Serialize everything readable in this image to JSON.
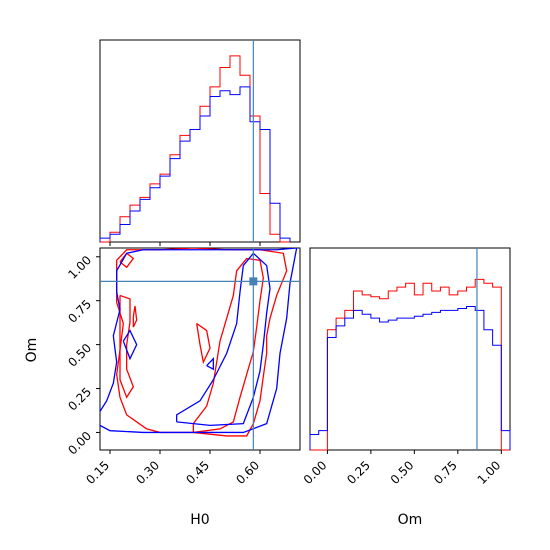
{
  "chart_data": {
    "type": "corner",
    "parameters": [
      "H0",
      "Om"
    ],
    "truths": {
      "H0": 0.58,
      "Om": 0.86
    },
    "truth_color": "#4682b4",
    "series_colors": {
      "red": "#ff0000",
      "blue": "#0000ff"
    },
    "axes": {
      "H0": {
        "label": "H0",
        "range": [
          0.12,
          0.72
        ],
        "ticks": [
          0.15,
          0.3,
          0.45,
          0.6
        ],
        "tick_labels": [
          "0.15",
          "0.30",
          "0.45",
          "0.60"
        ]
      },
      "Om": {
        "label": "Om",
        "range": [
          -0.1,
          1.05
        ],
        "ticks": [
          0.0,
          0.25,
          0.5,
          0.75,
          1.0
        ],
        "tick_labels": [
          "0.00",
          "0.25",
          "0.50",
          "0.75",
          "1.00"
        ]
      }
    },
    "hist_H0": {
      "edges": [
        0.12,
        0.15,
        0.18,
        0.21,
        0.24,
        0.27,
        0.3,
        0.33,
        0.36,
        0.39,
        0.42,
        0.45,
        0.48,
        0.51,
        0.54,
        0.57,
        0.6,
        0.63,
        0.66,
        0.69
      ],
      "red": [
        0,
        0.05,
        0.13,
        0.19,
        0.23,
        0.3,
        0.35,
        0.45,
        0.55,
        0.58,
        0.7,
        0.8,
        0.9,
        0.96,
        0.86,
        0.65,
        0.25,
        0.04,
        0
      ],
      "blue": [
        0.02,
        0.04,
        0.09,
        0.16,
        0.22,
        0.28,
        0.34,
        0.43,
        0.52,
        0.58,
        0.65,
        0.75,
        0.78,
        0.76,
        0.8,
        0.62,
        0.58,
        0.2,
        0.02
      ]
    },
    "hist_Om": {
      "edges": [
        -0.1,
        -0.05,
        0.0,
        0.05,
        0.1,
        0.15,
        0.2,
        0.25,
        0.3,
        0.35,
        0.4,
        0.45,
        0.5,
        0.55,
        0.6,
        0.65,
        0.7,
        0.75,
        0.8,
        0.85,
        0.9,
        0.95,
        1.0,
        1.05
      ],
      "red": [
        0,
        0,
        0.62,
        0.68,
        0.72,
        0.82,
        0.8,
        0.79,
        0.78,
        0.82,
        0.84,
        0.86,
        0.8,
        0.86,
        0.82,
        0.84,
        0.8,
        0.82,
        0.84,
        0.88,
        0.86,
        0.84,
        0
      ],
      "blue": [
        0.08,
        0.1,
        0.58,
        0.64,
        0.68,
        0.72,
        0.7,
        0.68,
        0.66,
        0.67,
        0.68,
        0.68,
        0.69,
        0.7,
        0.71,
        0.72,
        0.72,
        0.73,
        0.74,
        0.72,
        0.62,
        0.54,
        0.1
      ]
    },
    "contours_2d": {
      "red": [
        [
          [
            0.26,
            0.02
          ],
          [
            0.3,
            0.0
          ],
          [
            0.4,
            0.0
          ],
          [
            0.5,
            -0.02
          ],
          [
            0.56,
            -0.02
          ],
          [
            0.58,
            0.05
          ],
          [
            0.6,
            0.18
          ],
          [
            0.61,
            0.32
          ],
          [
            0.62,
            0.45
          ],
          [
            0.62,
            0.55
          ],
          [
            0.63,
            0.65
          ],
          [
            0.65,
            0.78
          ],
          [
            0.68,
            0.92
          ],
          [
            0.67,
            1.02
          ],
          [
            0.6,
            1.04
          ],
          [
            0.5,
            1.04
          ],
          [
            0.4,
            1.05
          ],
          [
            0.3,
            1.04
          ],
          [
            0.2,
            1.04
          ],
          [
            0.17,
            0.98
          ],
          [
            0.17,
            0.85
          ],
          [
            0.17,
            0.74
          ],
          [
            0.19,
            0.62
          ],
          [
            0.18,
            0.47
          ],
          [
            0.17,
            0.33
          ],
          [
            0.18,
            0.2
          ],
          [
            0.2,
            0.1
          ],
          [
            0.26,
            0.02
          ]
        ],
        [
          [
            0.4,
            0.0
          ],
          [
            0.48,
            0.02
          ],
          [
            0.52,
            0.06
          ],
          [
            0.54,
            0.2
          ],
          [
            0.56,
            0.33
          ],
          [
            0.58,
            0.46
          ],
          [
            0.59,
            0.6
          ],
          [
            0.6,
            0.75
          ],
          [
            0.61,
            0.88
          ],
          [
            0.6,
            0.98
          ],
          [
            0.56,
            0.99
          ],
          [
            0.53,
            0.92
          ],
          [
            0.52,
            0.78
          ],
          [
            0.5,
            0.65
          ],
          [
            0.48,
            0.52
          ],
          [
            0.47,
            0.4
          ],
          [
            0.46,
            0.28
          ],
          [
            0.44,
            0.15
          ],
          [
            0.4,
            0.05
          ],
          [
            0.4,
            0.0
          ]
        ],
        [
          [
            0.18,
            0.78
          ],
          [
            0.21,
            0.76
          ],
          [
            0.21,
            0.63
          ],
          [
            0.2,
            0.5
          ],
          [
            0.2,
            0.36
          ],
          [
            0.22,
            0.26
          ],
          [
            0.2,
            0.2
          ],
          [
            0.18,
            0.3
          ],
          [
            0.18,
            0.45
          ],
          [
            0.18,
            0.6
          ],
          [
            0.18,
            0.78
          ]
        ],
        [
          [
            0.18,
            0.97
          ],
          [
            0.2,
            1.02
          ],
          [
            0.22,
            0.99
          ],
          [
            0.2,
            0.94
          ],
          [
            0.18,
            0.97
          ]
        ],
        [
          [
            0.22,
            0.66
          ],
          [
            0.225,
            0.72
          ],
          [
            0.23,
            0.64
          ],
          [
            0.22,
            0.6
          ],
          [
            0.22,
            0.66
          ]
        ],
        [
          [
            0.41,
            0.62
          ],
          [
            0.44,
            0.58
          ],
          [
            0.45,
            0.48
          ],
          [
            0.43,
            0.4
          ],
          [
            0.42,
            0.5
          ],
          [
            0.41,
            0.62
          ]
        ]
      ],
      "blue": [
        [
          [
            0.1,
            0.06
          ],
          [
            0.15,
            0.01
          ],
          [
            0.25,
            0.0
          ],
          [
            0.4,
            0.0
          ],
          [
            0.55,
            0.0
          ],
          [
            0.62,
            0.05
          ],
          [
            0.65,
            0.25
          ],
          [
            0.66,
            0.45
          ],
          [
            0.68,
            0.65
          ],
          [
            0.69,
            0.85
          ],
          [
            0.71,
            1.05
          ],
          [
            0.65,
            1.04
          ],
          [
            0.55,
            1.04
          ],
          [
            0.4,
            1.04
          ],
          [
            0.25,
            1.04
          ],
          [
            0.2,
            1.02
          ],
          [
            0.17,
            0.92
          ],
          [
            0.17,
            0.8
          ],
          [
            0.18,
            0.7
          ],
          [
            0.16,
            0.55
          ],
          [
            0.17,
            0.4
          ],
          [
            0.16,
            0.28
          ],
          [
            0.14,
            0.18
          ],
          [
            0.1,
            0.06
          ]
        ],
        [
          [
            0.35,
            0.06
          ],
          [
            0.45,
            0.04
          ],
          [
            0.55,
            0.05
          ],
          [
            0.58,
            0.2
          ],
          [
            0.6,
            0.35
          ],
          [
            0.61,
            0.5
          ],
          [
            0.62,
            0.68
          ],
          [
            0.63,
            0.82
          ],
          [
            0.62,
            0.95
          ],
          [
            0.58,
            1.02
          ],
          [
            0.55,
            0.95
          ],
          [
            0.54,
            0.8
          ],
          [
            0.53,
            0.62
          ],
          [
            0.5,
            0.45
          ],
          [
            0.46,
            0.3
          ],
          [
            0.42,
            0.18
          ],
          [
            0.35,
            0.1
          ],
          [
            0.35,
            0.06
          ]
        ],
        [
          [
            0.19,
            0.52
          ],
          [
            0.21,
            0.58
          ],
          [
            0.23,
            0.5
          ],
          [
            0.21,
            0.42
          ],
          [
            0.19,
            0.52
          ]
        ],
        [
          [
            0.44,
            0.38
          ],
          [
            0.46,
            0.42
          ],
          [
            0.46,
            0.36
          ],
          [
            0.44,
            0.38
          ]
        ]
      ]
    }
  }
}
